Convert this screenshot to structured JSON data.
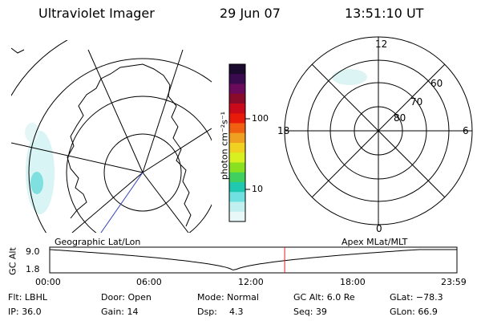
{
  "header": {
    "title": "Ultraviolet Imager",
    "date": "29 Jun 07",
    "time": "13:51:10 UT"
  },
  "left_map": {
    "label": "Geographic Lat/Lon"
  },
  "right_map": {
    "label": "Apex MLat/MLT",
    "mlt_labels": [
      "12",
      "18",
      "6",
      "0"
    ],
    "lat_labels": [
      "60",
      "70",
      "80"
    ]
  },
  "colorbar": {
    "unit_label": "photon cm⁻²s⁻¹",
    "ticks": [
      "100",
      "10"
    ],
    "colors": [
      "#1a0a2e",
      "#3a0a4e",
      "#6a0a5a",
      "#8a0a2a",
      "#c80a1a",
      "#e81a0a",
      "#f06010",
      "#f0a020",
      "#f0d020",
      "#d8f020",
      "#88e020",
      "#40d060",
      "#20c8b0",
      "#70e0e0",
      "#c0f0f0",
      "#e8f8f8"
    ]
  },
  "timeline": {
    "axis_label": "GC Alt",
    "ymax": "9.0",
    "ymin": "1.8",
    "x_labels": [
      "00:00",
      "06:00",
      "12:00",
      "18:00",
      "23:59"
    ],
    "current_time_fraction": 0.577
  },
  "info": {
    "flt": "Flt: LBHL",
    "door": "Door: Open",
    "mode": "Mode: Normal",
    "gc_alt": "GC Alt: 6.0 Re",
    "glat": "GLat: −78.3",
    "ip": "IP: 36.0",
    "gain": "Gain: 14",
    "dsp_label": "Dsp:",
    "dsp_value": "4.3",
    "seq": "Seq: 39",
    "glon": "GLon:  66.9"
  }
}
